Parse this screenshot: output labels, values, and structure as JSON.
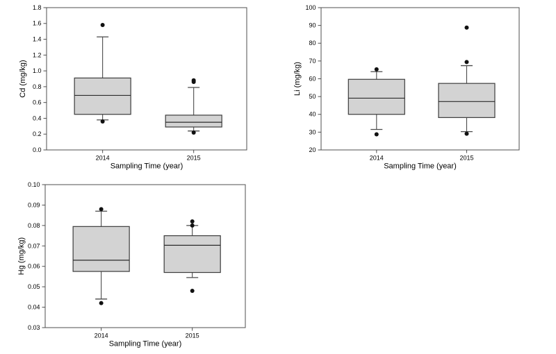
{
  "page": {
    "background": "#ffffff"
  },
  "styles": {
    "box_fill": "#d3d3d3",
    "box_border": "#3c3c3c",
    "frame_color": "#4f4f4f",
    "whisker_color": "#4a4a4a",
    "median_color": "#2b2b2b",
    "outlier_color": "#111111",
    "text_color": "#000000"
  },
  "chart_data": [
    {
      "type": "boxplot",
      "name": "cd-boxplot",
      "title": "",
      "xlabel": "Sampling Time (year)",
      "ylabel": "Cd (mg/kg)",
      "ylim": [
        0.0,
        1.8
      ],
      "ytick_step": 0.2,
      "ytick_decimals": 1,
      "grid": false,
      "legend": false,
      "categories": [
        "2014",
        "2015"
      ],
      "boxes": [
        {
          "category": "2014",
          "q1": 0.45,
          "median": 0.69,
          "q3": 0.91,
          "whisker_low": 0.38,
          "whisker_high": 1.43,
          "outliers": [
            1.58,
            0.36
          ]
        },
        {
          "category": "2015",
          "q1": 0.29,
          "median": 0.35,
          "q3": 0.44,
          "whisker_low": 0.24,
          "whisker_high": 0.79,
          "outliers": [
            0.88,
            0.86,
            0.22
          ]
        }
      ]
    },
    {
      "type": "boxplot",
      "name": "li-boxplot",
      "title": "",
      "xlabel": "Sampling Time (year)",
      "ylabel": "Li (mg/kg)",
      "ylim": [
        20,
        100
      ],
      "ytick_step": 10,
      "ytick_decimals": 0,
      "grid": false,
      "legend": false,
      "categories": [
        "2014",
        "2015"
      ],
      "boxes": [
        {
          "category": "2014",
          "q1": 40,
          "median": 49.1,
          "q3": 59.7,
          "whisker_low": 31.5,
          "whisker_high": 64,
          "outliers": [
            65.3,
            28.8
          ]
        },
        {
          "category": "2015",
          "q1": 38.2,
          "median": 47.2,
          "q3": 57.4,
          "whisker_low": 30.3,
          "whisker_high": 67.4,
          "outliers": [
            88.8,
            69.4,
            29.1
          ]
        }
      ]
    },
    {
      "type": "boxplot",
      "name": "hg-boxplot",
      "title": "",
      "xlabel": "Sampling Time (year)",
      "ylabel": "Hg (mg/kg)",
      "ylim": [
        0.03,
        0.1
      ],
      "ytick_step": 0.01,
      "ytick_decimals": 2,
      "grid": false,
      "legend": false,
      "categories": [
        "2014",
        "2015"
      ],
      "boxes": [
        {
          "category": "2014",
          "q1": 0.0575,
          "median": 0.063,
          "q3": 0.0795,
          "whisker_low": 0.044,
          "whisker_high": 0.087,
          "outliers": [
            0.088,
            0.042
          ]
        },
        {
          "category": "2015",
          "q1": 0.057,
          "median": 0.0703,
          "q3": 0.075,
          "whisker_low": 0.0545,
          "whisker_high": 0.08,
          "outliers": [
            0.082,
            0.08,
            0.048
          ]
        }
      ]
    }
  ]
}
